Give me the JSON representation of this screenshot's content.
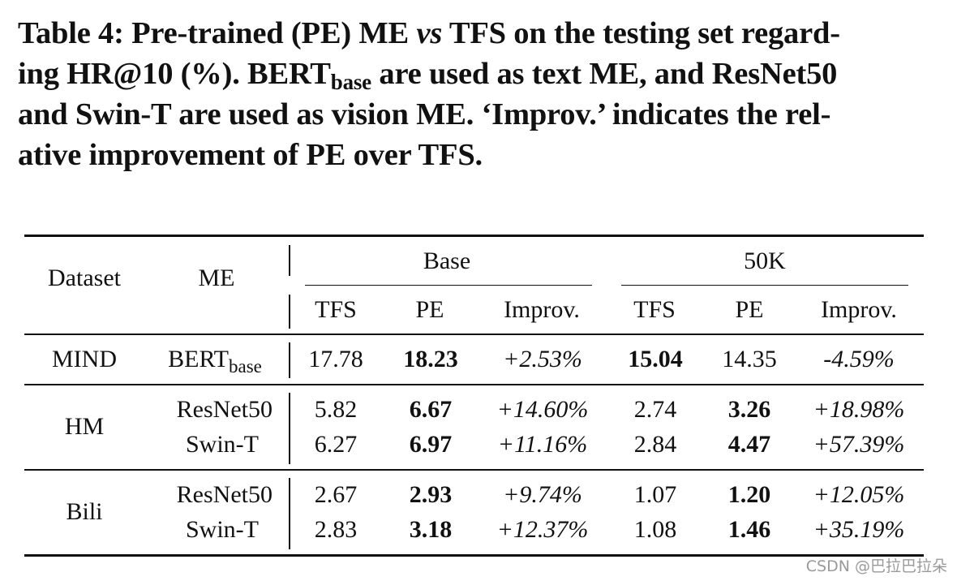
{
  "caption": {
    "line1_a": "Table 4: Pre-trained (PE) ME ",
    "line1_vs": "vs",
    "line1_b": " TFS on the testing set regard-",
    "line2_a": "ing HR@10 (%). BERT",
    "line2_sub": "base",
    "line2_b": " are used as text ME, and ResNet50",
    "line3": "and Swin-T are used as vision ME. ‘Improv.’ indicates the rel-",
    "line4": "ative improvement of PE over TFS."
  },
  "table": {
    "header": {
      "dataset": "Dataset",
      "me": "ME",
      "group_base": "Base",
      "group_50k": "50K",
      "sub": [
        "TFS",
        "PE",
        "Improv.",
        "TFS",
        "PE",
        "Improv."
      ]
    },
    "rows": [
      {
        "dataset": "MIND",
        "me": "BERT",
        "me_sub": "base",
        "v": [
          "17.78",
          "18.23",
          "+2.53%",
          "15.04",
          "14.35",
          "-4.59%"
        ],
        "bold": [
          1,
          3
        ]
      },
      {
        "dataset": "HM",
        "me": "ResNet50",
        "v": [
          "5.82",
          "6.67",
          "+14.60%",
          "2.74",
          "3.26",
          "+18.98%"
        ],
        "bold": [
          1,
          4
        ]
      },
      {
        "dataset": "",
        "me": "Swin-T",
        "v": [
          "6.27",
          "6.97",
          "+11.16%",
          "2.84",
          "4.47",
          "+57.39%"
        ],
        "bold": [
          1,
          4
        ]
      },
      {
        "dataset": "Bili",
        "me": "ResNet50",
        "v": [
          "2.67",
          "2.93",
          "+9.74%",
          "1.07",
          "1.20",
          "+12.05%"
        ],
        "bold": [
          1,
          4
        ]
      },
      {
        "dataset": "",
        "me": "Swin-T",
        "v": [
          "2.83",
          "3.18",
          "+12.37%",
          "1.08",
          "1.46",
          "+35.19%"
        ],
        "bold": [
          1,
          4
        ]
      }
    ]
  },
  "watermark": "CSDN @巴拉巴拉朵"
}
